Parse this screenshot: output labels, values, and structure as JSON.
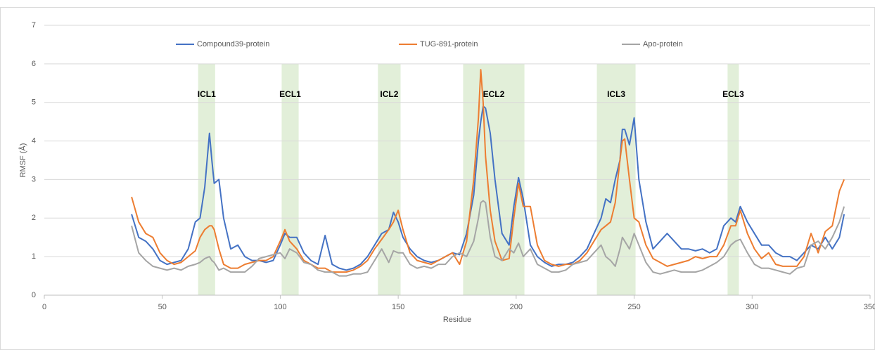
{
  "chart_data": {
    "type": "line",
    "xlabel": "Residue",
    "ylabel": "RMSF (Å)",
    "xlim": [
      0,
      350
    ],
    "xticks": [
      0,
      50,
      100,
      150,
      200,
      250,
      300,
      350
    ],
    "ylim": [
      0,
      7
    ],
    "yticks": [
      0,
      1,
      2,
      3,
      4,
      5,
      6,
      7
    ],
    "grid": true,
    "legend": "top",
    "regions": [
      {
        "label": "ICL1",
        "start": 65.2,
        "end": 72.4,
        "color": "#e2efd9"
      },
      {
        "label": "ECL1",
        "start": 100.6,
        "end": 107.8,
        "color": "#e2efd9"
      },
      {
        "label": "ICL2",
        "start": 141.4,
        "end": 151,
        "color": "#e2efd9"
      },
      {
        "label": "ECL2",
        "start": 177.5,
        "end": 203.5,
        "color": "#e2efd9"
      },
      {
        "label": "ICL3",
        "start": 234.2,
        "end": 250.6,
        "color": "#e2efd9"
      },
      {
        "label": "ECL3",
        "start": 289.6,
        "end": 294.4,
        "color": "#e2efd9"
      }
    ],
    "x": [
      37,
      40,
      43,
      46,
      49,
      52,
      55,
      58,
      61,
      64,
      66,
      68,
      70,
      71,
      72,
      74,
      76,
      79,
      82,
      85,
      88,
      91,
      94,
      97,
      100,
      102,
      104,
      107,
      110,
      113,
      116,
      119,
      122,
      125,
      128,
      131,
      134,
      137,
      140,
      143,
      146,
      148,
      150,
      152,
      155,
      158,
      161,
      164,
      167,
      170,
      173,
      176,
      179,
      182,
      184,
      185,
      186,
      187,
      189,
      191,
      194,
      197,
      199,
      201,
      203,
      206,
      209,
      212,
      215,
      218,
      221,
      224,
      227,
      230,
      233,
      236,
      238,
      240,
      242,
      244,
      245,
      246,
      248,
      250,
      252,
      255,
      258,
      261,
      264,
      267,
      270,
      273,
      276,
      279,
      282,
      285,
      288,
      291,
      293,
      295,
      298,
      301,
      304,
      307,
      310,
      313,
      316,
      319,
      322,
      325,
      328,
      331,
      334,
      337,
      339
    ],
    "series": [
      {
        "name": "Compound39-protein",
        "color": "#4472c4",
        "values": [
          2.1,
          1.5,
          1.4,
          1.2,
          0.9,
          0.8,
          0.85,
          0.9,
          1.2,
          1.9,
          2.0,
          2.8,
          4.2,
          3.5,
          2.9,
          3.0,
          2.0,
          1.2,
          1.3,
          1.0,
          0.9,
          0.9,
          0.85,
          0.9,
          1.3,
          1.6,
          1.5,
          1.5,
          1.1,
          0.9,
          0.8,
          1.55,
          0.8,
          0.7,
          0.65,
          0.7,
          0.8,
          1.0,
          1.3,
          1.6,
          1.7,
          2.15,
          1.9,
          1.5,
          1.2,
          1.0,
          0.9,
          0.85,
          0.9,
          1.0,
          1.1,
          1.05,
          1.6,
          2.6,
          4.0,
          4.5,
          4.9,
          4.85,
          4.2,
          3.0,
          1.6,
          1.3,
          2.3,
          3.05,
          2.5,
          1.3,
          1.0,
          0.85,
          0.75,
          0.8,
          0.8,
          0.85,
          1.0,
          1.2,
          1.6,
          2.0,
          2.5,
          2.4,
          3.0,
          3.5,
          4.3,
          4.3,
          3.9,
          4.6,
          3.0,
          1.9,
          1.2,
          1.4,
          1.6,
          1.4,
          1.2,
          1.2,
          1.15,
          1.2,
          1.1,
          1.2,
          1.8,
          2.0,
          1.9,
          2.3,
          1.9,
          1.6,
          1.3,
          1.3,
          1.1,
          1.0,
          1.0,
          0.9,
          1.1,
          1.3,
          1.2,
          1.5,
          1.2,
          1.5,
          2.1
        ]
      },
      {
        "name": "TUG-891-protein",
        "color": "#ed7d31",
        "values": [
          2.55,
          1.9,
          1.6,
          1.5,
          1.1,
          0.9,
          0.8,
          0.85,
          1.0,
          1.15,
          1.5,
          1.7,
          1.8,
          1.8,
          1.7,
          1.2,
          0.8,
          0.7,
          0.7,
          0.8,
          0.85,
          0.9,
          0.9,
          1.0,
          1.4,
          1.7,
          1.4,
          1.2,
          0.9,
          0.8,
          0.7,
          0.7,
          0.6,
          0.6,
          0.6,
          0.65,
          0.75,
          0.9,
          1.2,
          1.45,
          1.7,
          1.9,
          2.2,
          1.7,
          1.1,
          0.9,
          0.85,
          0.8,
          0.9,
          1.0,
          1.1,
          0.8,
          1.4,
          3.0,
          4.6,
          5.85,
          5.0,
          3.6,
          2.2,
          1.4,
          0.9,
          0.95,
          2.0,
          2.9,
          2.3,
          2.3,
          1.3,
          0.9,
          0.8,
          0.75,
          0.8,
          0.8,
          0.9,
          1.1,
          1.4,
          1.7,
          1.8,
          1.9,
          2.4,
          3.5,
          4.0,
          4.05,
          3.0,
          2.0,
          1.9,
          1.3,
          0.95,
          0.85,
          0.75,
          0.8,
          0.85,
          0.9,
          1.0,
          0.95,
          1.0,
          1.0,
          1.3,
          1.8,
          1.8,
          2.2,
          1.6,
          1.2,
          0.95,
          1.1,
          0.8,
          0.75,
          0.75,
          0.75,
          1.0,
          1.6,
          1.1,
          1.65,
          1.8,
          2.7,
          3.0
        ]
      },
      {
        "name": "Apo-protein",
        "color": "#a5a5a5",
        "values": [
          1.8,
          1.1,
          0.9,
          0.75,
          0.7,
          0.65,
          0.7,
          0.65,
          0.75,
          0.8,
          0.85,
          0.95,
          1.0,
          0.9,
          0.85,
          0.65,
          0.7,
          0.6,
          0.6,
          0.6,
          0.75,
          0.95,
          1.0,
          1.05,
          1.1,
          0.95,
          1.2,
          1.1,
          0.85,
          0.8,
          0.65,
          0.6,
          0.6,
          0.5,
          0.5,
          0.55,
          0.55,
          0.6,
          0.9,
          1.2,
          0.85,
          1.15,
          1.1,
          1.1,
          0.8,
          0.7,
          0.75,
          0.7,
          0.8,
          0.8,
          1.0,
          1.1,
          1.0,
          1.4,
          2.0,
          2.4,
          2.45,
          2.4,
          1.5,
          1.0,
          0.9,
          1.2,
          1.1,
          1.35,
          1.0,
          1.2,
          0.8,
          0.7,
          0.6,
          0.6,
          0.65,
          0.8,
          0.85,
          0.9,
          1.1,
          1.3,
          1.0,
          0.9,
          0.75,
          1.2,
          1.5,
          1.4,
          1.2,
          1.6,
          1.3,
          0.85,
          0.6,
          0.55,
          0.6,
          0.65,
          0.6,
          0.6,
          0.6,
          0.65,
          0.75,
          0.85,
          1.0,
          1.3,
          1.4,
          1.45,
          1.1,
          0.8,
          0.7,
          0.7,
          0.65,
          0.6,
          0.55,
          0.7,
          0.75,
          1.3,
          1.4,
          1.2,
          1.5,
          1.9,
          2.3
        ]
      }
    ]
  }
}
